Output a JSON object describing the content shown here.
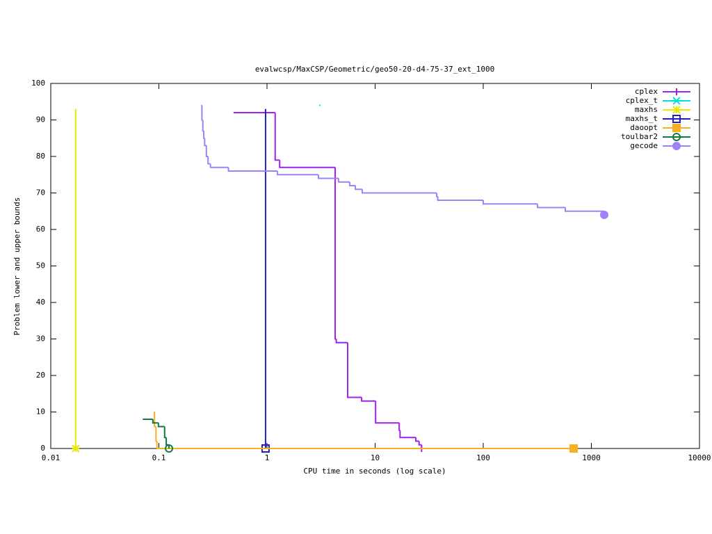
{
  "chart_data": {
    "type": "line",
    "title": "evalwcsp/MaxCSP/Geometric/geo50-20-d4-75-37_ext_1000",
    "x_label": "CPU time in seconds (log scale)",
    "y_label": "Problem lower and upper bounds",
    "xscale": "log",
    "xlim": [
      0.01,
      10000
    ],
    "xticks": [
      0.01,
      0.1,
      1,
      10,
      100,
      1000,
      10000
    ],
    "ylim": [
      0,
      100
    ],
    "yticks": [
      0,
      10,
      20,
      30,
      40,
      50,
      60,
      70,
      80,
      90,
      100
    ],
    "legend": "top-right",
    "style": "steps",
    "series": [
      {
        "name": "cplex",
        "color": "#a020f0",
        "marker": "plus",
        "x": [
          0.49,
          1.19,
          1.31,
          4.27,
          4.37,
          5.57,
          7.5,
          10.1,
          16.7,
          17.0,
          23.8,
          25.5,
          26.9
        ],
        "values": [
          92,
          79,
          77,
          30,
          29,
          14,
          13,
          7,
          5,
          3,
          2,
          1,
          0
        ]
      },
      {
        "name": "cplex_t",
        "color": "#00e0e0",
        "marker": "cross",
        "points_only": true,
        "x": [
          3.08
        ],
        "values": [
          94
        ]
      },
      {
        "name": "maxhs",
        "color": "#e8e800",
        "marker": "star",
        "x": [
          0.017,
          0.017
        ],
        "values": [
          93,
          0
        ]
      },
      {
        "name": "maxhs_t",
        "color": "#2020c0",
        "marker": "square",
        "x": [
          0.97,
          0.97
        ],
        "values": [
          93,
          0
        ]
      },
      {
        "name": "daoopt",
        "color": "#f8b020",
        "marker": "filled-square",
        "x": [
          0.0895,
          0.091,
          0.094,
          0.096,
          685
        ],
        "values": [
          10,
          6,
          2,
          0,
          0
        ]
      },
      {
        "name": "toulbar2",
        "color": "#107840",
        "marker": "circle",
        "x": [
          0.071,
          0.088,
          0.099,
          0.113,
          0.117,
          0.124
        ],
        "values": [
          8,
          7,
          6,
          3,
          1,
          0
        ]
      },
      {
        "name": "gecode",
        "color": "#a080f8",
        "marker": "filled-circle",
        "x": [
          0.245,
          0.25,
          0.255,
          0.26,
          0.265,
          0.275,
          0.285,
          0.3,
          0.44,
          1.25,
          2.99,
          4.59,
          5.82,
          6.56,
          7.6,
          37.1,
          38,
          100,
          318,
          574,
          1315
        ],
        "values": [
          94,
          90,
          87,
          85,
          83,
          80,
          78,
          77,
          76,
          75,
          74,
          73,
          72,
          71,
          70,
          69,
          68,
          67,
          66,
          65,
          64
        ]
      }
    ]
  }
}
